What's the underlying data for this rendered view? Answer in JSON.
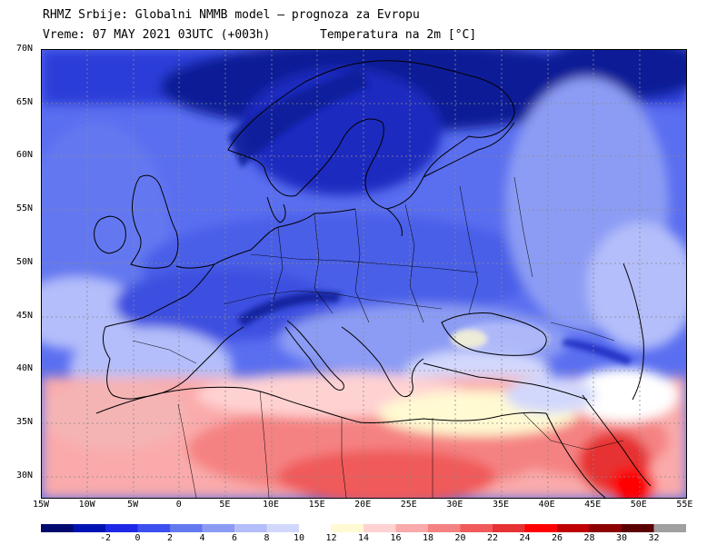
{
  "header": {
    "title_line1": "RHMZ Srbije: Globalni NMMB model – prognoza za Evropu",
    "title_line2_left": "Vreme: 07 MAY 2021 03UTC (+003h)",
    "title_line2_right": "Temperatura na 2m [°C]"
  },
  "map": {
    "lat_labels": [
      "70N",
      "65N",
      "60N",
      "55N",
      "50N",
      "45N",
      "40N",
      "35N",
      "30N"
    ],
    "lon_labels": [
      "15W",
      "10W",
      "5W",
      "0",
      "5E",
      "10E",
      "15E",
      "20E",
      "25E",
      "30E",
      "35E",
      "40E",
      "45E",
      "50E",
      "55E"
    ]
  },
  "colorbar": {
    "labels": [
      "-2",
      "0",
      "2",
      "4",
      "6",
      "8",
      "10",
      "12",
      "14",
      "16",
      "18",
      "20",
      "22",
      "24",
      "26",
      "28",
      "30",
      "32"
    ],
    "colors": [
      "#000a6e",
      "#0014b4",
      "#1e28e6",
      "#3c50f0",
      "#6478f0",
      "#8c9cf4",
      "#b4befa",
      "#d2d8fc",
      "#ffffff",
      "#fffad2",
      "#ffd2d2",
      "#faaaaa",
      "#f58282",
      "#f05a5a",
      "#e63232",
      "#ff0000",
      "#be0000",
      "#8c0000",
      "#5a0000",
      "#a0a0a0"
    ]
  },
  "colors": {
    "cold_dark": "#0a1e96",
    "cold": "#3c50e6",
    "cool": "#8296f0",
    "neutral": "#ffffff",
    "warm": "#f5a0a0",
    "hot": "#e63232"
  }
}
